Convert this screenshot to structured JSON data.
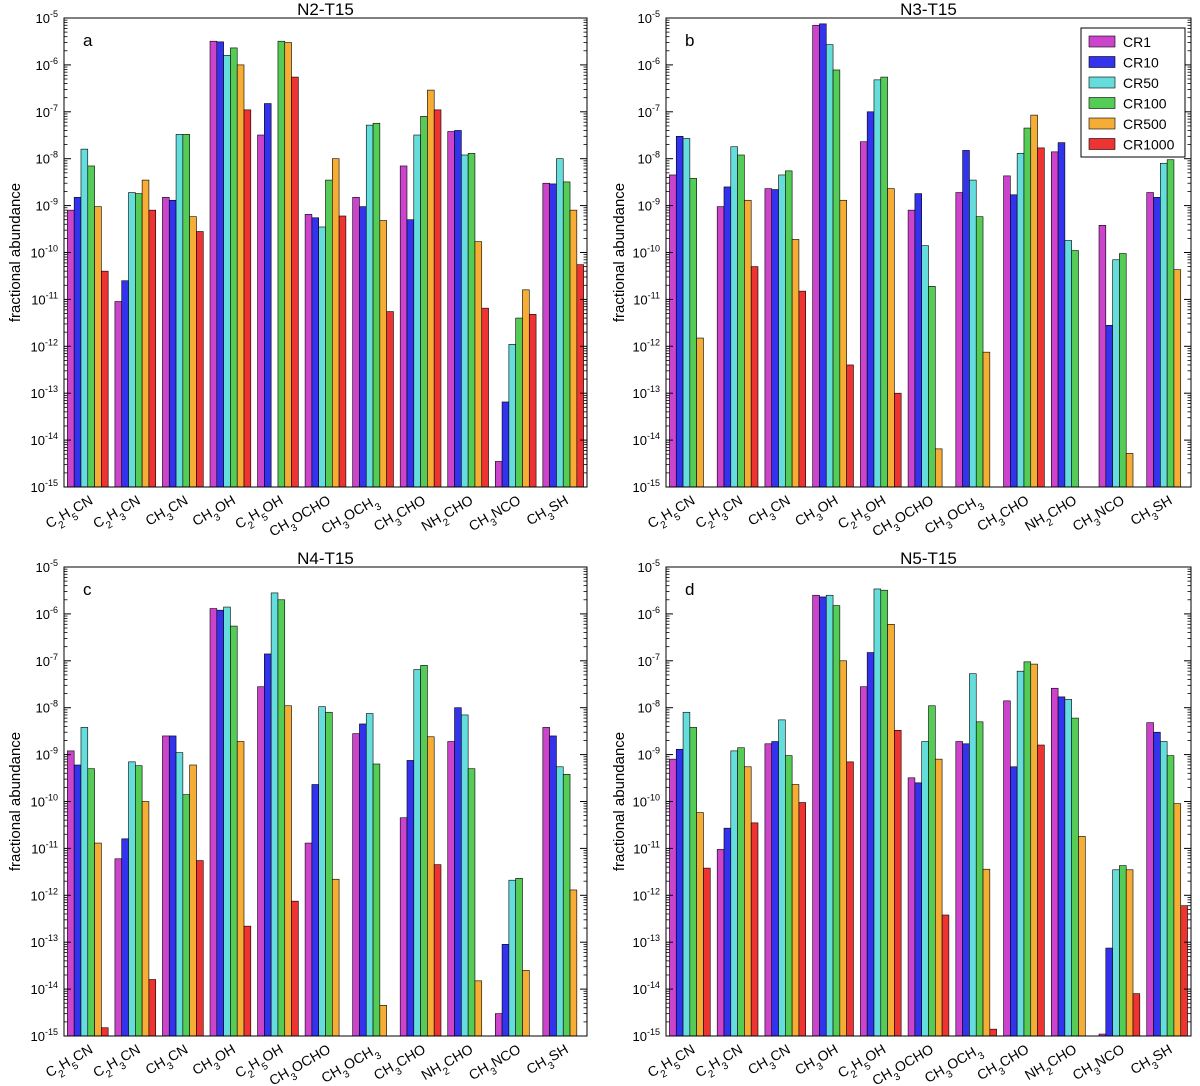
{
  "colors": {
    "CR1": "#cc44cc",
    "CR10": "#3333ee",
    "CR50": "#66dddd",
    "CR100": "#55cc55",
    "CR500": "#f5ad35",
    "CR1000": "#ee3333"
  },
  "chart_data": [
    {
      "type": "bar",
      "title": "N2-T15",
      "panel_letter": "a",
      "ylabel": "fractional abundance",
      "yscale": "log",
      "ylim": [
        1e-15,
        1e-05
      ],
      "yticks": [
        -15,
        -14,
        -13,
        -12,
        -11,
        -10,
        -9,
        -8,
        -7,
        -6,
        -5
      ],
      "categories": [
        "C2H5CN",
        "C2H3CN",
        "CH3CN",
        "CH3OH",
        "C2H5OH",
        "CH3OCHO",
        "CH3OCH3",
        "CH3CHO",
        "NH2CHO",
        "CH3NCO",
        "CH3SH"
      ],
      "series": [
        {
          "name": "CR1",
          "values": [
            8e-10,
            9e-12,
            1.5e-09,
            3.2e-06,
            3.2e-08,
            6.5e-10,
            1.5e-09,
            7e-09,
            3.8e-08,
            3.5e-15,
            3e-09
          ]
        },
        {
          "name": "CR10",
          "values": [
            1.5e-09,
            2.5e-11,
            1.3e-09,
            3.1e-06,
            1.5e-07,
            5.5e-10,
            9.5e-10,
            5e-10,
            4e-08,
            6.5e-14,
            2.9e-09
          ]
        },
        {
          "name": "CR50",
          "values": [
            1.6e-08,
            1.9e-09,
            3.3e-08,
            1.6e-06,
            null,
            3.5e-10,
            5.2e-08,
            3.2e-08,
            1.2e-08,
            1.1e-12,
            1e-08
          ]
        },
        {
          "name": "CR100",
          "values": [
            7e-09,
            1.8e-09,
            3.3e-08,
            2.3e-06,
            3.2e-06,
            3.5e-09,
            5.7e-08,
            8e-08,
            1.3e-08,
            4e-12,
            3.2e-09
          ]
        },
        {
          "name": "CR500",
          "values": [
            9.5e-10,
            3.5e-09,
            5.8e-10,
            1e-06,
            3e-06,
            1e-08,
            4.8e-10,
            2.9e-07,
            1.7e-10,
            1.6e-11,
            8e-10
          ]
        },
        {
          "name": "CR1000",
          "values": [
            4e-11,
            8e-10,
            2.8e-10,
            1.1e-07,
            5.5e-07,
            6e-10,
            5.5e-12,
            1.1e-07,
            6.5e-12,
            4.8e-12,
            5.5e-11
          ]
        }
      ]
    },
    {
      "type": "bar",
      "title": "N3-T15",
      "panel_letter": "b",
      "ylabel": "fractional abundance",
      "yscale": "log",
      "ylim": [
        1e-15,
        1e-05
      ],
      "yticks": [
        -15,
        -14,
        -13,
        -12,
        -11,
        -10,
        -9,
        -8,
        -7,
        -6,
        -5
      ],
      "categories": [
        "C2H5CN",
        "C2H3CN",
        "CH3CN",
        "CH3OH",
        "C2H5OH",
        "CH3OCHO",
        "CH3OCH3",
        "CH3CHO",
        "NH2CHO",
        "CH3NCO",
        "CH3SH"
      ],
      "series": [
        {
          "name": "CR1",
          "values": [
            4.5e-09,
            9.5e-10,
            2.3e-09,
            7e-06,
            2.3e-08,
            8e-10,
            1.9e-09,
            4.3e-09,
            1.4e-08,
            3.8e-10,
            1.9e-09
          ]
        },
        {
          "name": "CR10",
          "values": [
            3e-08,
            2.5e-09,
            2.2e-09,
            7.5e-06,
            1e-07,
            1.8e-09,
            1.5e-08,
            1.7e-09,
            2.2e-08,
            2.8e-12,
            1.5e-09
          ]
        },
        {
          "name": "CR50",
          "values": [
            2.7e-08,
            1.8e-08,
            4.5e-09,
            2.7e-06,
            4.8e-07,
            1.4e-10,
            3.5e-09,
            1.3e-08,
            1.8e-10,
            7e-11,
            8e-09
          ]
        },
        {
          "name": "CR100",
          "values": [
            3.8e-09,
            1.2e-08,
            5.5e-09,
            7.8e-07,
            5.5e-07,
            1.9e-11,
            5.8e-10,
            4.5e-08,
            1.1e-10,
            9.5e-11,
            9.5e-09
          ]
        },
        {
          "name": "CR500",
          "values": [
            1.5e-12,
            1.3e-09,
            1.9e-10,
            1.3e-09,
            2.3e-09,
            6.5e-15,
            7.5e-13,
            8.5e-08,
            null,
            5.2e-15,
            4.3e-11
          ]
        },
        {
          "name": "CR1000",
          "values": [
            null,
            5e-11,
            1.5e-11,
            4e-13,
            1e-13,
            null,
            null,
            1.7e-08,
            null,
            null,
            null
          ]
        }
      ],
      "legend": [
        "CR1",
        "CR10",
        "CR50",
        "CR100",
        "CR500",
        "CR1000"
      ],
      "legend_position": "top-right"
    },
    {
      "type": "bar",
      "title": "N4-T15",
      "panel_letter": "c",
      "ylabel": "fractional abundance",
      "yscale": "log",
      "ylim": [
        1e-15,
        1e-05
      ],
      "yticks": [
        -15,
        -14,
        -13,
        -12,
        -11,
        -10,
        -9,
        -8,
        -7,
        -6,
        -5
      ],
      "categories": [
        "C2H5CN",
        "C2H3CN",
        "CH3CN",
        "CH3OH",
        "C2H5OH",
        "CH3OCHO",
        "CH3OCH3",
        "CH3CHO",
        "NH2CHO",
        "CH3NCO",
        "CH3SH"
      ],
      "series": [
        {
          "name": "CR1",
          "values": [
            1.2e-09,
            6e-12,
            2.5e-09,
            1.3e-06,
            2.8e-08,
            1.3e-11,
            2.8e-09,
            4.5e-11,
            1.9e-09,
            3e-15,
            3.8e-09
          ]
        },
        {
          "name": "CR10",
          "values": [
            6e-10,
            1.6e-11,
            2.5e-09,
            1.2e-06,
            1.4e-07,
            2.3e-10,
            4.5e-09,
            7.5e-10,
            1e-08,
            9e-14,
            2.5e-09
          ]
        },
        {
          "name": "CR50",
          "values": [
            3.8e-09,
            7e-10,
            1.1e-09,
            1.4e-06,
            2.8e-06,
            1.05e-08,
            7.5e-09,
            6.5e-08,
            7e-09,
            2.1e-12,
            5.5e-10
          ]
        },
        {
          "name": "CR100",
          "values": [
            5e-10,
            5.8e-10,
            1.4e-10,
            5.5e-07,
            2e-06,
            8e-09,
            6.3e-10,
            8e-08,
            5e-10,
            2.3e-12,
            3.8e-10
          ]
        },
        {
          "name": "CR500",
          "values": [
            1.3e-11,
            1e-10,
            6e-10,
            1.9e-09,
            1.1e-08,
            2.2e-12,
            4.5e-15,
            2.4e-09,
            1.5e-14,
            2.5e-14,
            1.3e-12
          ]
        },
        {
          "name": "CR1000",
          "values": [
            1.5e-15,
            1.6e-14,
            5.5e-12,
            2.2e-13,
            7.5e-13,
            null,
            null,
            4.5e-12,
            null,
            null,
            null
          ]
        }
      ]
    },
    {
      "type": "bar",
      "title": "N5-T15",
      "panel_letter": "d",
      "ylabel": "fractional abundance",
      "yscale": "log",
      "ylim": [
        1e-15,
        1e-05
      ],
      "yticks": [
        -15,
        -14,
        -13,
        -12,
        -11,
        -10,
        -9,
        -8,
        -7,
        -6,
        -5
      ],
      "categories": [
        "C2H5CN",
        "C2H3CN",
        "CH3CN",
        "CH3OH",
        "C2H5OH",
        "CH3OCHO",
        "CH3OCH3",
        "CH3CHO",
        "NH2CHO",
        "CH3NCO",
        "CH3SH"
      ],
      "series": [
        {
          "name": "CR1",
          "values": [
            8e-10,
            9.5e-12,
            1.7e-09,
            2.5e-06,
            2.8e-08,
            3.2e-10,
            1.9e-09,
            1.4e-08,
            2.6e-08,
            1.1e-15,
            4.8e-09
          ]
        },
        {
          "name": "CR10",
          "values": [
            1.3e-09,
            2.7e-11,
            1.9e-09,
            2.3e-06,
            1.5e-07,
            2.5e-10,
            1.7e-09,
            5.5e-10,
            1.7e-08,
            7.5e-14,
            3e-09
          ]
        },
        {
          "name": "CR50",
          "values": [
            8e-09,
            1.2e-09,
            5.5e-09,
            2.5e-06,
            3.4e-06,
            1.9e-09,
            5.3e-08,
            6e-08,
            1.5e-08,
            3.5e-12,
            1.9e-09
          ]
        },
        {
          "name": "CR100",
          "values": [
            3.8e-09,
            1.4e-09,
            9.5e-10,
            1.5e-06,
            3.2e-06,
            1.1e-08,
            5e-09,
            9.5e-08,
            6e-09,
            4.3e-12,
            9.5e-10
          ]
        },
        {
          "name": "CR500",
          "values": [
            5.8e-11,
            5.5e-10,
            2.3e-10,
            1e-07,
            6e-07,
            8e-10,
            3.6e-12,
            8.5e-08,
            1.8e-11,
            3.5e-12,
            9e-11
          ]
        },
        {
          "name": "CR1000",
          "values": [
            3.8e-12,
            3.5e-11,
            9.5e-11,
            7e-10,
            3.3e-09,
            3.8e-13,
            1.4e-15,
            1.6e-09,
            null,
            8e-15,
            6e-13
          ]
        }
      ]
    }
  ]
}
